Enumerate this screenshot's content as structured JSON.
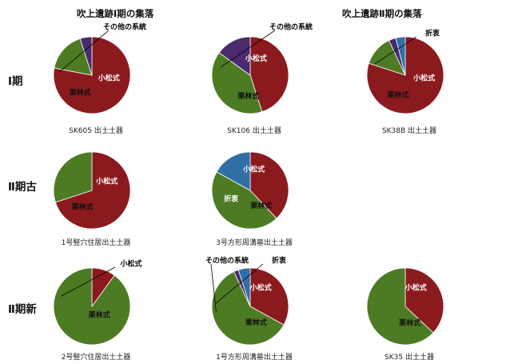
{
  "headers": {
    "left": "吹上遺跡Ⅰ期の集落",
    "right": "吹上遺跡Ⅱ期の集落"
  },
  "rows": [
    {
      "label": "Ⅰ期"
    },
    {
      "label": "Ⅱ期古"
    },
    {
      "label": "Ⅱ期新"
    }
  ],
  "colors": {
    "小松式": "#8b1a1f",
    "栗林式": "#4d7b24",
    "その他の系統": "#4b2a6e",
    "折衷": "#2f6fa6"
  },
  "chart_data": [
    {
      "type": "pie",
      "caption": "SK605 出土土器",
      "slices": [
        {
          "name": "小松式",
          "value": 78
        },
        {
          "name": "栗林式",
          "value": 17
        },
        {
          "name": "その他の系統",
          "value": 5
        }
      ],
      "labels": [
        "小松式",
        "栗林式",
        "その他の系統"
      ]
    },
    {
      "type": "pie",
      "caption": "SK106 出土土器",
      "slices": [
        {
          "name": "小松式",
          "value": 45
        },
        {
          "name": "栗林式",
          "value": 40
        },
        {
          "name": "その他の系統",
          "value": 15
        }
      ],
      "labels": [
        "小松式",
        "栗林式",
        "その他の系統"
      ]
    },
    {
      "type": "pie",
      "caption": "SK38B 出土土器",
      "slices": [
        {
          "name": "小松式",
          "value": 80
        },
        {
          "name": "栗林式",
          "value": 13
        },
        {
          "name": "その他の系統",
          "value": 3
        },
        {
          "name": "折衷",
          "value": 4
        }
      ],
      "labels": [
        "小松式",
        "栗林式",
        "折衷"
      ]
    },
    {
      "type": "pie",
      "caption": "1号竪穴住居出土土器",
      "slices": [
        {
          "name": "小松式",
          "value": 70
        },
        {
          "name": "栗林式",
          "value": 30
        }
      ],
      "labels": [
        "小松式",
        "栗林式"
      ]
    },
    {
      "type": "pie",
      "caption": "3号方形周溝墓出土土器",
      "slices": [
        {
          "name": "小松式",
          "value": 38
        },
        {
          "name": "栗林式",
          "value": 45
        },
        {
          "name": "折衷",
          "value": 17
        }
      ],
      "labels": [
        "小松式",
        "栗林式",
        "折衷"
      ]
    },
    {
      "type": "pie",
      "caption": "2号竪穴住居出土土器",
      "slices": [
        {
          "name": "小松式",
          "value": 10
        },
        {
          "name": "栗林式",
          "value": 90
        }
      ],
      "labels": [
        "小松式",
        "栗林式"
      ]
    },
    {
      "type": "pie",
      "caption": "1号方形周溝墓出土土器",
      "slices": [
        {
          "name": "小松式",
          "value": 33
        },
        {
          "name": "栗林式",
          "value": 60
        },
        {
          "name": "その他の系統",
          "value": 2
        },
        {
          "name": "折衷",
          "value": 5
        }
      ],
      "labels": [
        "小松式",
        "栗林式",
        "その他の系統",
        "折衷"
      ]
    },
    {
      "type": "pie",
      "caption": "SK35 出土土器",
      "slices": [
        {
          "name": "小松式",
          "value": 37
        },
        {
          "name": "栗林式",
          "value": 63
        }
      ],
      "labels": [
        "小松式",
        "栗林式"
      ]
    }
  ]
}
